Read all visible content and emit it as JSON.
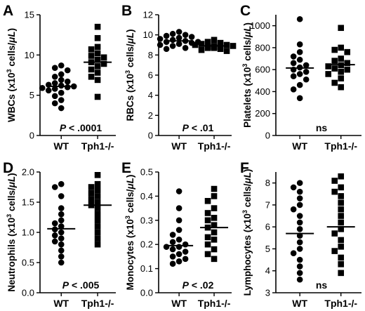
{
  "chart_data": [
    {
      "panel": "A",
      "type": "scatter",
      "categories": [
        "WT",
        "Tph1-/-"
      ],
      "ylabel": "WBCs (x10<sup>3</sup> cells/μL)",
      "ylabel_parts": [
        "WBCs (x10",
        "3",
        " cells/",
        "μL",
        ")"
      ],
      "ylim": [
        0,
        15
      ],
      "yticks": [
        0,
        5,
        10,
        15
      ],
      "annotation": {
        "prefix": "P",
        "rest": " < .0001"
      },
      "series": [
        {
          "category": "WT",
          "marker": "circle",
          "mean": 6.1,
          "values": [
            8.7,
            8.4,
            8.1,
            7.6,
            7.3,
            6.9,
            6.7,
            6.5,
            6.3,
            6.2,
            6.1,
            6.0,
            5.9,
            5.8,
            5.6,
            5.3,
            4.9,
            4.4,
            4.0,
            3.4
          ]
        },
        {
          "category": "Tph1-/-",
          "marker": "square",
          "mean": 9.1,
          "values": [
            13.5,
            12.1,
            11.0,
            10.7,
            10.2,
            9.9,
            9.7,
            9.4,
            9.1,
            8.9,
            8.6,
            8.2,
            7.8,
            7.3,
            6.9,
            4.8
          ]
        }
      ]
    },
    {
      "panel": "B",
      "type": "scatter",
      "categories": [
        "WT",
        "Tph1-/-"
      ],
      "ylabel_parts": [
        "RBCs (x10",
        "3",
        " cells/",
        "μL",
        ")"
      ],
      "ylim": [
        0,
        12
      ],
      "yticks": [
        0,
        2,
        4,
        6,
        8,
        10,
        12
      ],
      "annotation": {
        "prefix": "P",
        "rest": " < .01"
      },
      "series": [
        {
          "category": "WT",
          "marker": "circle",
          "mean": 9.4,
          "values": [
            10.3,
            10.1,
            10.0,
            9.9,
            9.8,
            9.7,
            9.6,
            9.5,
            9.4,
            9.3,
            9.3,
            9.2,
            9.1,
            9.0,
            8.9,
            8.7,
            8.6
          ]
        },
        {
          "category": "Tph1-/-",
          "marker": "square",
          "mean": 8.9,
          "values": [
            9.5,
            9.3,
            9.2,
            9.1,
            9.0,
            9.0,
            8.9,
            8.9,
            8.8,
            8.8,
            8.7,
            8.7,
            8.6,
            8.5,
            8.4
          ]
        }
      ]
    },
    {
      "panel": "C",
      "type": "scatter",
      "categories": [
        "WT",
        "Tph1-/-"
      ],
      "ylabel_parts": [
        "Platelets (x10",
        "3",
        " cells/",
        "μL",
        ")"
      ],
      "ylim": [
        0,
        1100
      ],
      "yticks": [
        0,
        200,
        400,
        600,
        800,
        1000
      ],
      "annotation": {
        "prefix": "",
        "rest": "ns"
      },
      "series": [
        {
          "category": "WT",
          "marker": "circle",
          "mean": 615,
          "values": [
            1060,
            830,
            760,
            720,
            690,
            660,
            640,
            620,
            600,
            580,
            560,
            540,
            510,
            460,
            420,
            340
          ]
        },
        {
          "category": "Tph1-/-",
          "marker": "square",
          "mean": 645,
          "values": [
            980,
            800,
            780,
            760,
            700,
            680,
            660,
            640,
            630,
            610,
            600,
            580,
            560,
            520,
            480,
            440
          ]
        }
      ]
    },
    {
      "panel": "D",
      "type": "scatter",
      "categories": [
        "WT",
        "Tph1-/-"
      ],
      "ylabel_parts": [
        "Neutrophils (x10",
        "3",
        " cells/",
        "μL",
        ")"
      ],
      "ylim": [
        0,
        2.0
      ],
      "yticks": [
        0,
        0.5,
        1.0,
        1.5,
        2.0
      ],
      "ytick_labels": [
        "0.0",
        "0.5",
        "1.0",
        "1.5",
        "2.0"
      ],
      "annotation": {
        "prefix": "P",
        "rest": " < .005"
      },
      "series": [
        {
          "category": "WT",
          "marker": "circle",
          "mean": 1.06,
          "values": [
            1.8,
            1.75,
            1.6,
            1.4,
            1.3,
            1.2,
            1.15,
            1.1,
            1.05,
            1.0,
            0.95,
            0.9,
            0.85,
            0.8,
            0.7,
            0.6,
            0.5
          ]
        },
        {
          "category": "Tph1-/-",
          "marker": "square",
          "mean": 1.45,
          "values": [
            1.95,
            1.8,
            1.75,
            1.7,
            1.65,
            1.6,
            1.55,
            1.5,
            1.45,
            1.4,
            1.3,
            1.2,
            1.1,
            1.0,
            0.9,
            0.8
          ]
        }
      ]
    },
    {
      "panel": "E",
      "type": "scatter",
      "categories": [
        "WT",
        "Tph1-/-"
      ],
      "ylabel_parts": [
        "Monocytes (x10",
        "3",
        " cells/",
        "μL",
        ")"
      ],
      "ylim": [
        0,
        0.5
      ],
      "yticks": [
        0,
        0.1,
        0.2,
        0.3,
        0.4,
        0.5
      ],
      "ytick_labels": [
        "0.0",
        "0.1",
        "0.2",
        "0.3",
        "0.4",
        "0.5"
      ],
      "annotation": {
        "prefix": "P",
        "rest": " < .02"
      },
      "series": [
        {
          "category": "WT",
          "marker": "circle",
          "mean": 0.195,
          "values": [
            0.42,
            0.35,
            0.3,
            0.26,
            0.24,
            0.22,
            0.21,
            0.2,
            0.19,
            0.19,
            0.18,
            0.17,
            0.16,
            0.15,
            0.14,
            0.13,
            0.12
          ]
        },
        {
          "category": "Tph1-/-",
          "marker": "square",
          "mean": 0.27,
          "values": [
            0.43,
            0.4,
            0.38,
            0.35,
            0.33,
            0.31,
            0.3,
            0.28,
            0.27,
            0.25,
            0.23,
            0.22,
            0.2,
            0.18,
            0.16,
            0.14
          ]
        }
      ]
    },
    {
      "panel": "F",
      "type": "scatter",
      "categories": [
        "WT",
        "Tph1-/-"
      ],
      "ylabel_parts": [
        "Lymphocytes (x10",
        "3",
        " cells/",
        "μL",
        ")"
      ],
      "ylim": [
        3,
        8.5
      ],
      "yticks": [
        3,
        4,
        5,
        6,
        7,
        8
      ],
      "annotation": {
        "prefix": "",
        "rest": "ns"
      },
      "series": [
        {
          "category": "WT",
          "marker": "circle",
          "mean": 5.7,
          "values": [
            8.0,
            7.8,
            7.6,
            7.3,
            7.0,
            6.8,
            6.5,
            6.2,
            5.9,
            5.6,
            5.3,
            5.0,
            4.8,
            4.5,
            4.2,
            3.9,
            3.6
          ]
        },
        {
          "category": "Tph1-/-",
          "marker": "square",
          "mean": 6.0,
          "values": [
            8.3,
            8.1,
            7.8,
            7.6,
            7.4,
            7.1,
            6.8,
            6.5,
            6.2,
            5.9,
            5.7,
            5.4,
            5.1,
            4.9,
            4.6,
            4.3,
            3.9
          ]
        }
      ]
    }
  ]
}
